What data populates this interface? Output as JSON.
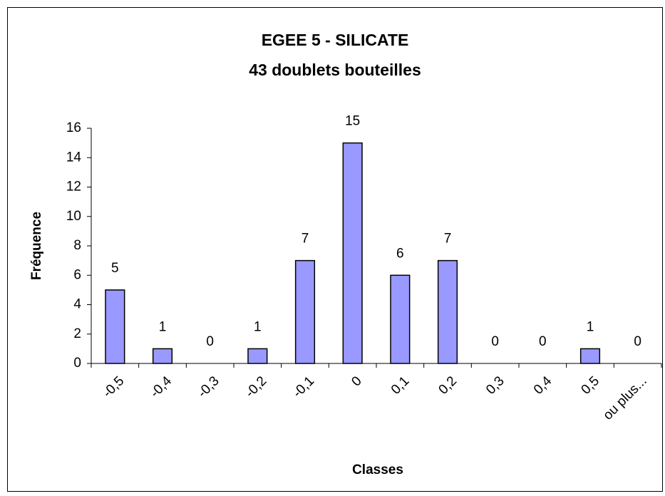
{
  "chart_data": {
    "type": "bar",
    "title": "EGEE 5 - SILICATE",
    "subtitle": "43 doublets bouteilles",
    "x_label": "Classes",
    "y_label": "Fréquence",
    "categories": [
      "-0,5",
      "-0,4",
      "-0,3",
      "-0,2",
      "-0,1",
      "0",
      "0,1",
      "0,2",
      "0,3",
      "0,4",
      "0,5",
      "ou plus..."
    ],
    "values": [
      5,
      1,
      0,
      1,
      7,
      15,
      6,
      7,
      0,
      0,
      1,
      0
    ],
    "color": "#9999ff",
    "ylim": [
      0,
      16
    ],
    "yticks": [
      0,
      2,
      4,
      6,
      8,
      10,
      12,
      14,
      16
    ],
    "grid": false
  }
}
